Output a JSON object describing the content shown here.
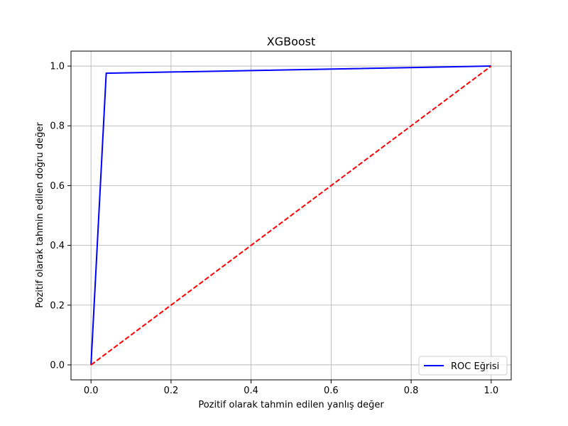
{
  "chart_data": {
    "type": "line",
    "title": "XGBoost",
    "xlabel": "Pozitif olarak tahmin edilen yanlış değer",
    "ylabel": "Pozitif olarak tahmin edilen doğru değer",
    "xlim": [
      -0.05,
      1.05
    ],
    "ylim": [
      -0.05,
      1.05
    ],
    "xticks": [
      0.0,
      0.2,
      0.4,
      0.6,
      0.8,
      1.0
    ],
    "yticks": [
      0.0,
      0.2,
      0.4,
      0.6,
      0.8,
      1.0
    ],
    "xtick_labels": [
      "0.0",
      "0.2",
      "0.4",
      "0.6",
      "0.8",
      "1.0"
    ],
    "ytick_labels": [
      "0.0",
      "0.2",
      "0.4",
      "0.6",
      "0.8",
      "1.0"
    ],
    "grid": true,
    "legend_position": "lower-right",
    "series": [
      {
        "name": "ROC Eğrisi",
        "x": [
          0.0,
          0.038,
          1.0
        ],
        "y": [
          0.0,
          0.976,
          1.0
        ],
        "color": "#0000ff",
        "style": "solid"
      },
      {
        "x": [
          0.0,
          1.0
        ],
        "y": [
          0.0,
          1.0
        ],
        "color": "#ff0000",
        "style": "dashed"
      }
    ]
  }
}
